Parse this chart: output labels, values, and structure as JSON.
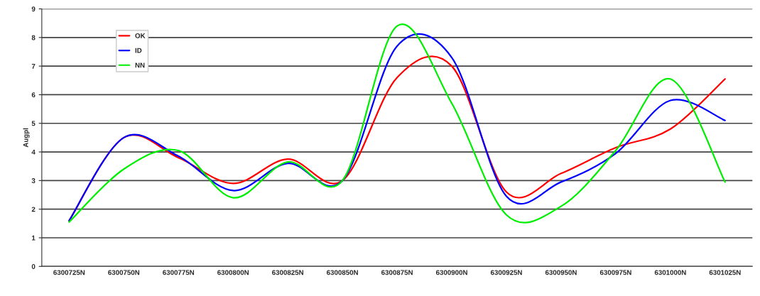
{
  "chart_data": {
    "type": "line",
    "ylabel": "Augpl",
    "categories": [
      "6300725N",
      "6300750N",
      "6300775N",
      "6300800N",
      "6300825N",
      "6300850N",
      "6300875N",
      "6300900N",
      "6300925N",
      "6300950N",
      "6300975N",
      "6301000N",
      "6301025N"
    ],
    "series": [
      {
        "name": "OK",
        "color": "#ff0000",
        "values": [
          1.6,
          4.5,
          3.8,
          2.9,
          3.75,
          3.0,
          6.6,
          7.0,
          2.6,
          3.25,
          4.15,
          4.8,
          6.55
        ]
      },
      {
        "name": "ID",
        "color": "#0000ff",
        "values": [
          1.6,
          4.5,
          3.85,
          2.65,
          3.6,
          3.0,
          7.7,
          7.3,
          2.45,
          2.95,
          3.95,
          5.8,
          5.1
        ]
      },
      {
        "name": "NN",
        "color": "#00ee00",
        "values": [
          1.55,
          3.4,
          4.05,
          2.4,
          3.65,
          3.0,
          8.4,
          5.7,
          1.8,
          2.1,
          4.05,
          6.55,
          2.95
        ]
      }
    ],
    "ylim": [
      0,
      9
    ],
    "yticks": [
      0,
      1,
      2,
      3,
      4,
      5,
      6,
      7,
      8,
      9
    ],
    "grid": "y",
    "legend": "top left",
    "marker": "none",
    "line_style": "solid"
  }
}
